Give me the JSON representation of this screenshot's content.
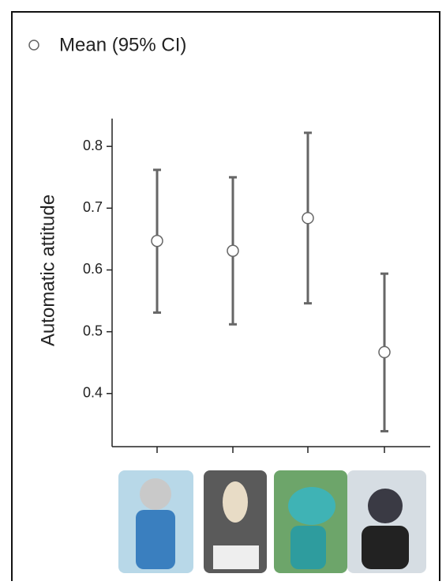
{
  "chart_data": {
    "type": "errorbar",
    "y_label": "Automatic attitude",
    "categories": [
      null,
      null,
      null,
      null
    ],
    "series": [
      {
        "name": "Mean (95% CI)",
        "color": "#666666",
        "values": [
          0.647,
          0.631,
          0.684,
          0.467
        ],
        "lower": [
          0.531,
          0.512,
          0.546,
          0.339
        ],
        "upper": [
          0.762,
          0.75,
          0.822,
          0.594
        ]
      }
    ],
    "ylim": [
      0.314,
      0.845
    ],
    "yticks": [
      0.4,
      0.5,
      0.6,
      0.7,
      0.8
    ],
    "legend": "top-left"
  }
}
